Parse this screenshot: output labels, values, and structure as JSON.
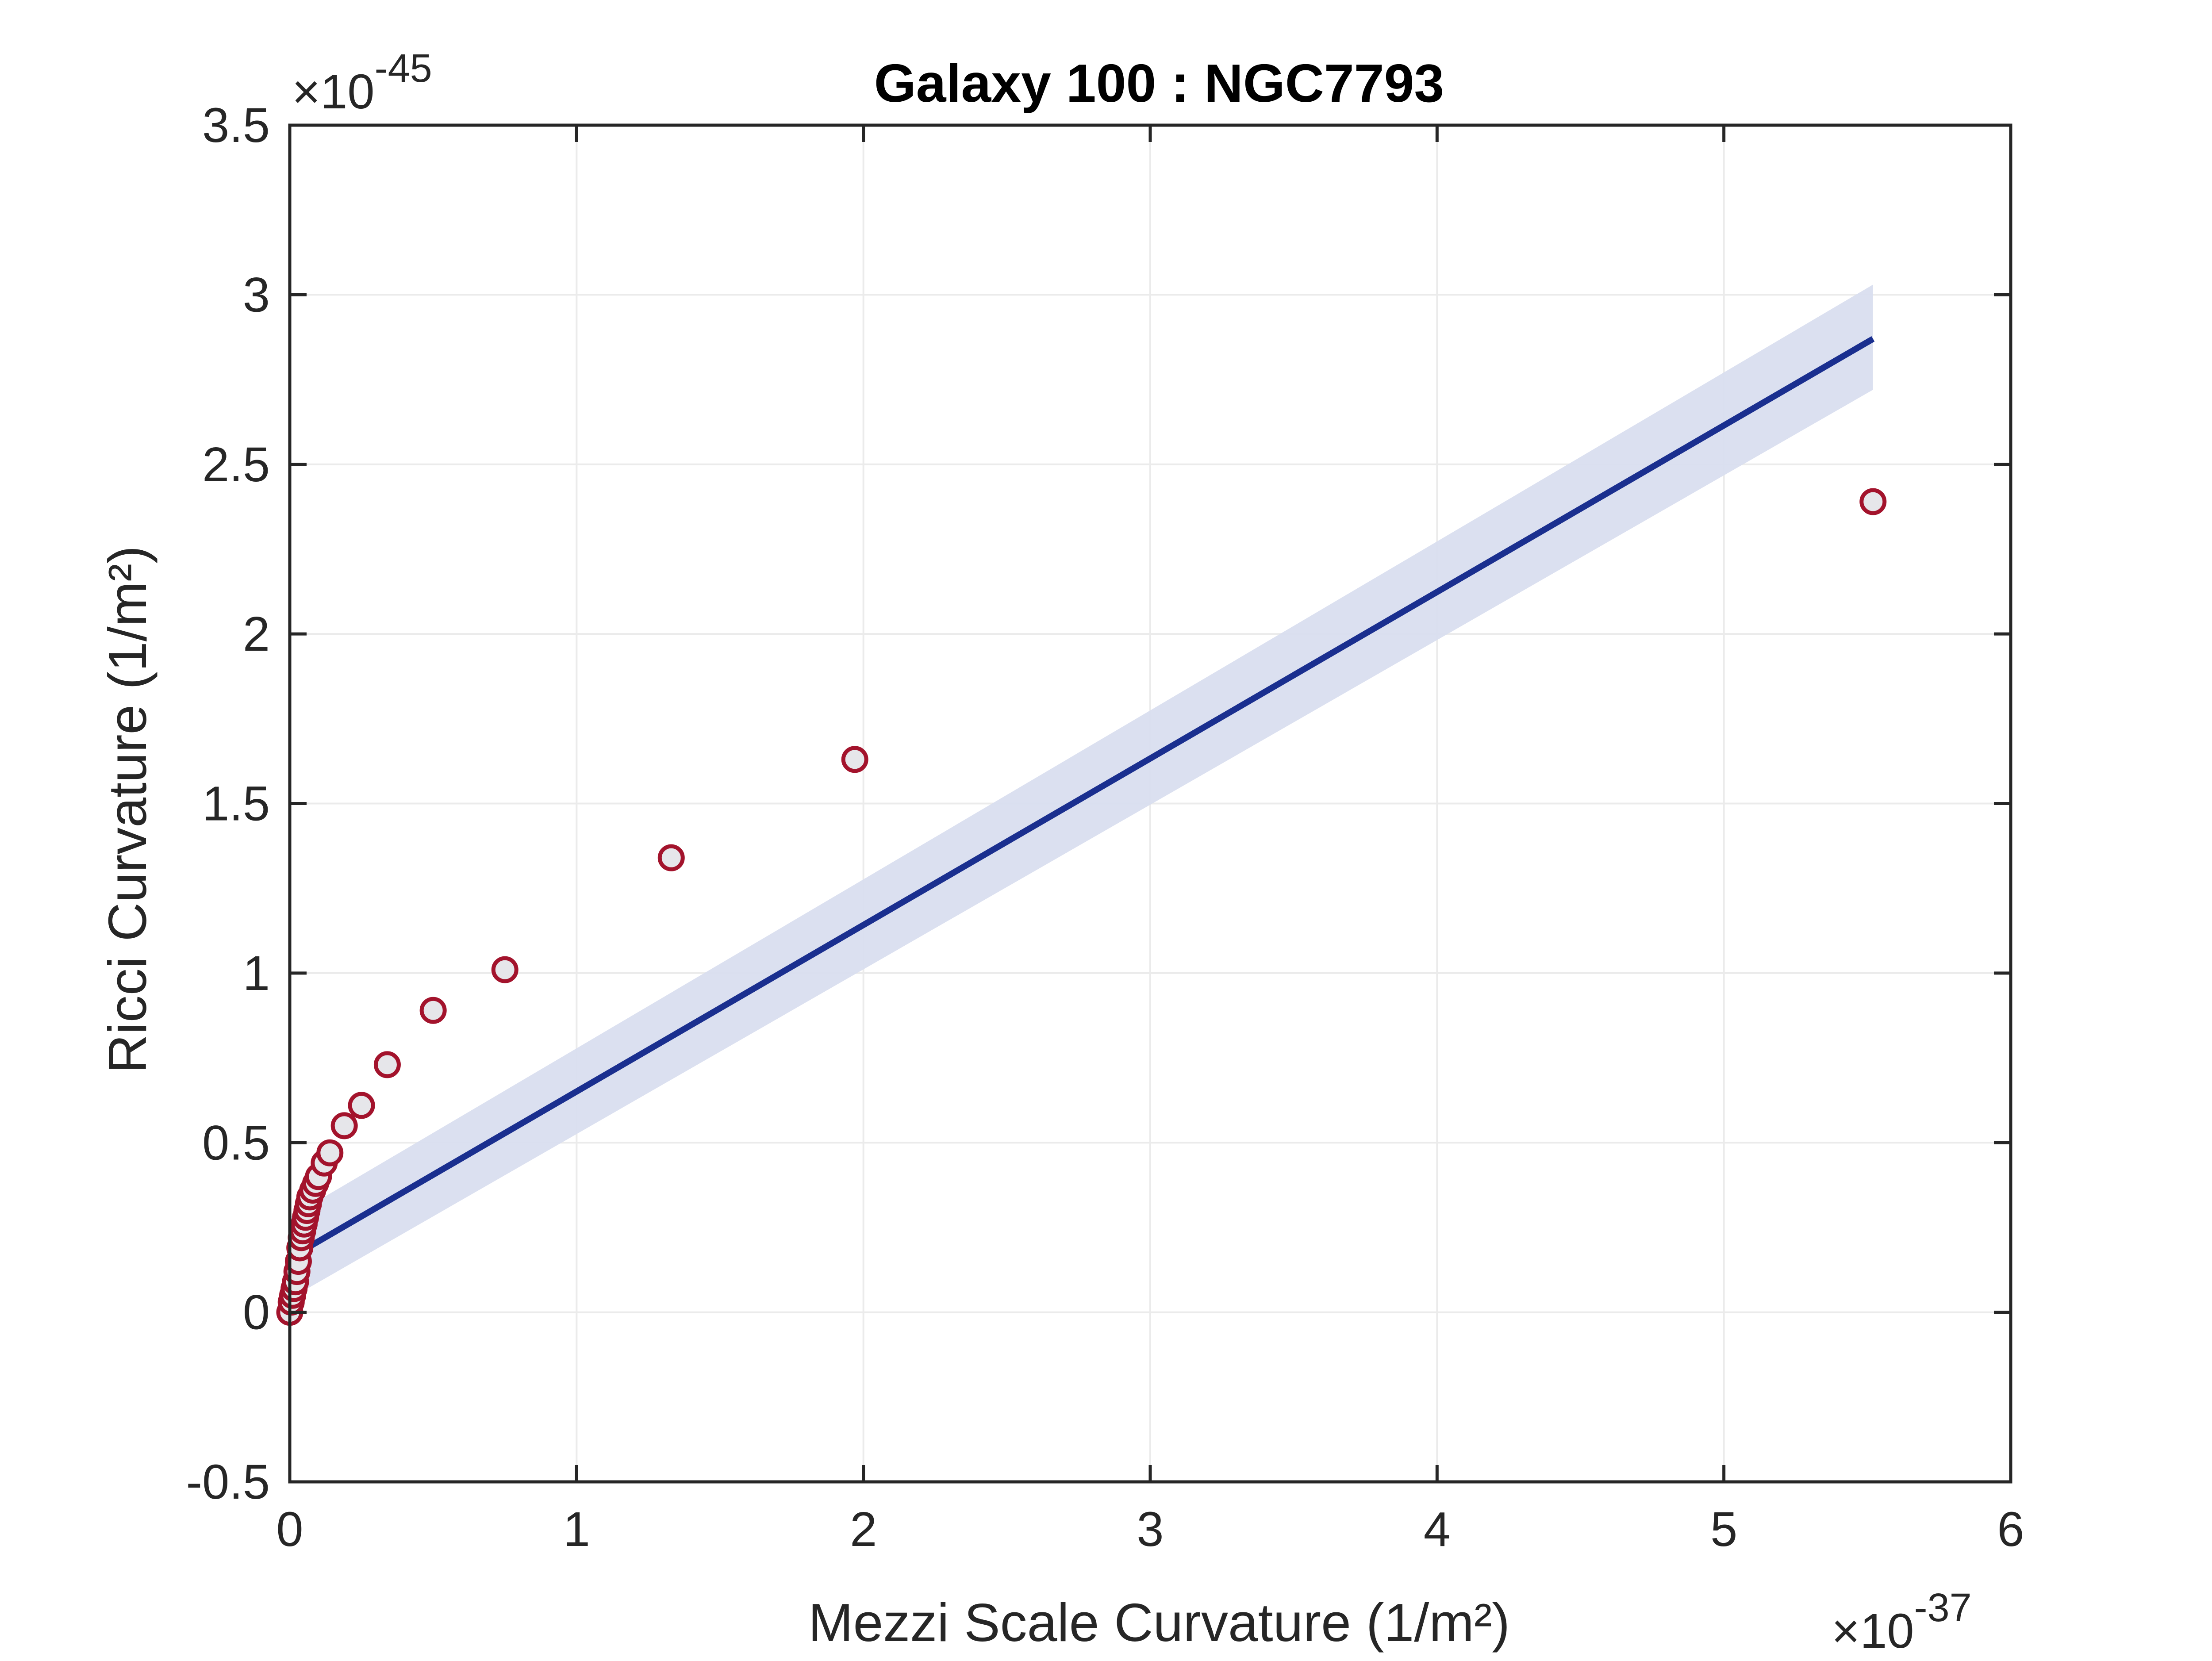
{
  "chart_data": {
    "type": "scatter",
    "title": "Galaxy 100 : NGC7793",
    "xlabel": "Mezzi Scale Curvature (1/m²)",
    "ylabel": "Ricci Curvature (1/m²)",
    "x_exponent_base": "×10",
    "x_exponent_power": "-37",
    "y_exponent_base": "×10",
    "y_exponent_power": "-45",
    "xlim": [
      0,
      6
    ],
    "ylim": [
      -0.5,
      3.5
    ],
    "xticks": [
      0,
      1,
      2,
      3,
      4,
      5,
      6
    ],
    "xtick_labels": [
      "0",
      "1",
      "2",
      "3",
      "4",
      "5",
      "6"
    ],
    "yticks": [
      -0.5,
      0,
      0.5,
      1,
      1.5,
      2,
      2.5,
      3,
      3.5
    ],
    "ytick_labels": [
      "-0.5",
      "0",
      "0.5",
      "1",
      "1.5",
      "2",
      "2.5",
      "3",
      "3.5"
    ],
    "grid": true,
    "legend": "none",
    "series": [
      {
        "kind": "scatter",
        "marker": "open-circle",
        "edge_color": "#a3132c",
        "face_color": "#e6e6ea",
        "x": [
          0.0,
          0.005,
          0.01,
          0.015,
          0.02,
          0.025,
          0.03,
          0.035,
          0.04,
          0.045,
          0.05,
          0.055,
          0.06,
          0.065,
          0.07,
          0.08,
          0.09,
          0.1,
          0.12,
          0.14,
          0.19,
          0.25,
          0.34,
          0.5,
          0.75,
          1.33,
          1.97,
          5.52
        ],
        "y": [
          0.0,
          0.03,
          0.05,
          0.07,
          0.09,
          0.12,
          0.15,
          0.19,
          0.22,
          0.24,
          0.26,
          0.28,
          0.3,
          0.32,
          0.34,
          0.36,
          0.38,
          0.4,
          0.44,
          0.47,
          0.55,
          0.61,
          0.73,
          0.89,
          1.01,
          1.34,
          1.63,
          2.39
        ]
      },
      {
        "kind": "fit-line",
        "color": "#1a2f8f",
        "x": [
          0.0,
          5.52
        ],
        "y": [
          0.16,
          2.87
        ]
      },
      {
        "kind": "confidence-band",
        "color": "#d9deef",
        "x": [
          0.0,
          5.52
        ],
        "lower": [
          0.04,
          2.72
        ],
        "upper": [
          0.28,
          3.03
        ]
      }
    ]
  }
}
